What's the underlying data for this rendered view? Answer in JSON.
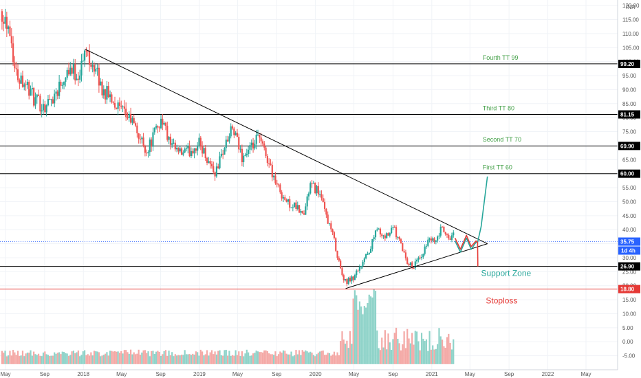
{
  "currency_label": "INR",
  "chart_data": {
    "type": "candlestick",
    "x_axis": {
      "tick_labels": [
        "May",
        "Sep",
        "2018",
        "May",
        "Sep",
        "2019",
        "May",
        "Sep",
        "2020",
        "May",
        "Sep",
        "2021",
        "May",
        "Sep",
        "2022",
        "May"
      ],
      "tick_dates": [
        "2017-05-01",
        "2017-09-01",
        "2018-01-01",
        "2018-05-01",
        "2018-09-01",
        "2019-01-01",
        "2019-05-01",
        "2019-09-01",
        "2020-01-01",
        "2020-05-01",
        "2020-09-01",
        "2021-01-01",
        "2021-05-01",
        "2021-09-01",
        "2022-01-01",
        "2022-05-01"
      ]
    },
    "y_axis": {
      "range": [
        -10,
        122
      ],
      "tick_labels": [
        "-5.00",
        "0.00",
        "5.00",
        "10.00",
        "15.00",
        "20.00",
        "25.00",
        "30.00",
        "35.00",
        "40.00",
        "45.00",
        "50.00",
        "55.00",
        "60.00",
        "65.00",
        "70.00",
        "75.00",
        "80.00",
        "85.00",
        "90.00",
        "95.00",
        "100.00",
        "105.00",
        "110.00",
        "115.00",
        "120.00"
      ],
      "tick_values": [
        -5,
        0,
        5,
        10,
        15,
        20,
        25,
        30,
        35,
        40,
        45,
        50,
        55,
        60,
        65,
        70,
        75,
        80,
        85,
        90,
        95,
        100,
        105,
        110,
        115,
        120
      ]
    },
    "price_points": [
      {
        "date": "2017-04-20",
        "price": 118
      },
      {
        "date": "2017-05-15",
        "price": 112
      },
      {
        "date": "2017-06-01",
        "price": 96
      },
      {
        "date": "2017-07-01",
        "price": 93
      },
      {
        "date": "2017-08-01",
        "price": 86
      },
      {
        "date": "2017-09-01",
        "price": 84
      },
      {
        "date": "2017-10-01",
        "price": 88
      },
      {
        "date": "2017-11-15",
        "price": 98
      },
      {
        "date": "2017-12-15",
        "price": 95
      },
      {
        "date": "2018-01-10",
        "price": 104
      },
      {
        "date": "2018-02-01",
        "price": 99
      },
      {
        "date": "2018-03-01",
        "price": 90
      },
      {
        "date": "2018-04-01",
        "price": 87
      },
      {
        "date": "2018-05-01",
        "price": 82
      },
      {
        "date": "2018-06-01",
        "price": 79
      },
      {
        "date": "2018-07-01",
        "price": 72
      },
      {
        "date": "2018-07-20",
        "price": 68
      },
      {
        "date": "2018-08-15",
        "price": 75
      },
      {
        "date": "2018-09-05",
        "price": 80
      },
      {
        "date": "2018-10-01",
        "price": 70
      },
      {
        "date": "2018-11-01",
        "price": 67
      },
      {
        "date": "2018-12-01",
        "price": 68
      },
      {
        "date": "2019-01-01",
        "price": 71
      },
      {
        "date": "2019-02-01",
        "price": 64
      },
      {
        "date": "2019-02-20",
        "price": 60
      },
      {
        "date": "2019-03-15",
        "price": 68
      },
      {
        "date": "2019-04-15",
        "price": 76
      },
      {
        "date": "2019-05-15",
        "price": 66
      },
      {
        "date": "2019-06-15",
        "price": 69
      },
      {
        "date": "2019-07-05",
        "price": 73
      },
      {
        "date": "2019-08-01",
        "price": 66
      },
      {
        "date": "2019-09-01",
        "price": 56
      },
      {
        "date": "2019-10-01",
        "price": 50
      },
      {
        "date": "2019-11-01",
        "price": 48
      },
      {
        "date": "2019-11-25",
        "price": 45
      },
      {
        "date": "2019-12-15",
        "price": 56
      },
      {
        "date": "2020-01-10",
        "price": 54
      },
      {
        "date": "2020-02-01",
        "price": 46
      },
      {
        "date": "2020-02-25",
        "price": 38
      },
      {
        "date": "2020-03-20",
        "price": 26
      },
      {
        "date": "2020-04-05",
        "price": 21
      },
      {
        "date": "2020-05-01",
        "price": 23
      },
      {
        "date": "2020-05-20",
        "price": 27
      },
      {
        "date": "2020-06-20",
        "price": 33
      },
      {
        "date": "2020-07-10",
        "price": 41
      },
      {
        "date": "2020-08-05",
        "price": 37
      },
      {
        "date": "2020-09-01",
        "price": 41
      },
      {
        "date": "2020-09-25",
        "price": 35
      },
      {
        "date": "2020-10-15",
        "price": 29
      },
      {
        "date": "2020-11-05",
        "price": 27
      },
      {
        "date": "2020-12-01",
        "price": 31
      },
      {
        "date": "2020-12-25",
        "price": 37
      },
      {
        "date": "2021-01-15",
        "price": 35
      },
      {
        "date": "2021-02-01",
        "price": 41
      },
      {
        "date": "2021-02-20",
        "price": 37
      },
      {
        "date": "2021-03-10",
        "price": 38
      }
    ],
    "volume_colors": {
      "up": "#8fd3c9",
      "down": "#f4a9a6"
    },
    "volume_spikes": [
      {
        "date": "2020-05-05",
        "value": 19
      },
      {
        "date": "2020-05-20",
        "value": 15
      },
      {
        "date": "2020-06-05",
        "value": 14
      },
      {
        "date": "2020-06-20",
        "value": 18
      },
      {
        "date": "2020-07-05",
        "value": 20
      }
    ],
    "horizontal_levels": [
      {
        "value": 99.2,
        "label": "99.20",
        "color": "#000000"
      },
      {
        "value": 81.15,
        "label": "81.15",
        "color": "#000000"
      },
      {
        "value": 69.9,
        "label": "69.90",
        "color": "#000000"
      },
      {
        "value": 60,
        "label": "60.00",
        "color": "#000000"
      },
      {
        "value": 26.9,
        "label": "26.90",
        "color": "#000000"
      },
      {
        "value": 18.8,
        "label": "18.80",
        "color": "#e53935"
      }
    ],
    "current_price": {
      "value": 35.75,
      "label": "35.75",
      "color": "#2962ff"
    },
    "timeframe_badge": {
      "label": "1d 4h",
      "color": "#2962ff"
    },
    "trendlines": [
      {
        "from": {
          "date": "2018-01-05",
          "price": 104.5
        },
        "to": {
          "date": "2021-06-25",
          "price": 35
        }
      },
      {
        "from": {
          "date": "2020-04-05",
          "price": 19
        },
        "to": {
          "date": "2021-06-25",
          "price": 35
        }
      }
    ],
    "projections": [
      {
        "color": "#26a69a",
        "points": [
          {
            "date": "2021-03-15",
            "price": 36
          },
          {
            "date": "2021-04-01",
            "price": 32
          },
          {
            "date": "2021-04-20",
            "price": 37
          },
          {
            "date": "2021-05-05",
            "price": 33
          },
          {
            "date": "2021-05-20",
            "price": 35.5
          },
          {
            "date": "2021-05-25",
            "price": 35.5
          },
          {
            "date": "2021-06-05",
            "price": 41
          },
          {
            "date": "2021-06-25",
            "price": 59
          }
        ]
      },
      {
        "color": "#e53935",
        "points": [
          {
            "date": "2021-03-15",
            "price": 37
          },
          {
            "date": "2021-04-01",
            "price": 33
          },
          {
            "date": "2021-04-20",
            "price": 38
          },
          {
            "date": "2021-05-05",
            "price": 34
          },
          {
            "date": "2021-05-20",
            "price": 36
          },
          {
            "date": "2021-05-25",
            "price": 35.5
          },
          {
            "date": "2021-05-26",
            "price": 26.9
          }
        ]
      }
    ],
    "annotations": [
      {
        "text": "Fourth TT 99",
        "date": "2021-06-10",
        "price": 100.6,
        "color": "#43a047",
        "size": 9
      },
      {
        "text": "Third TT 80",
        "date": "2021-06-10",
        "price": 82.6,
        "color": "#43a047",
        "size": 9
      },
      {
        "text": "Second TT 70",
        "date": "2021-06-10",
        "price": 71.4,
        "color": "#43a047",
        "size": 9
      },
      {
        "text": "First TT 60",
        "date": "2021-06-10",
        "price": 61.5,
        "color": "#43a047",
        "size": 9
      },
      {
        "text": "Support Zone",
        "date": "2021-06-05",
        "price": 23.5,
        "color": "#26a69a",
        "size": 12
      },
      {
        "text": "Stoploss",
        "date": "2021-06-20",
        "price": 13.7,
        "color": "#e53935",
        "size": 12
      }
    ]
  }
}
